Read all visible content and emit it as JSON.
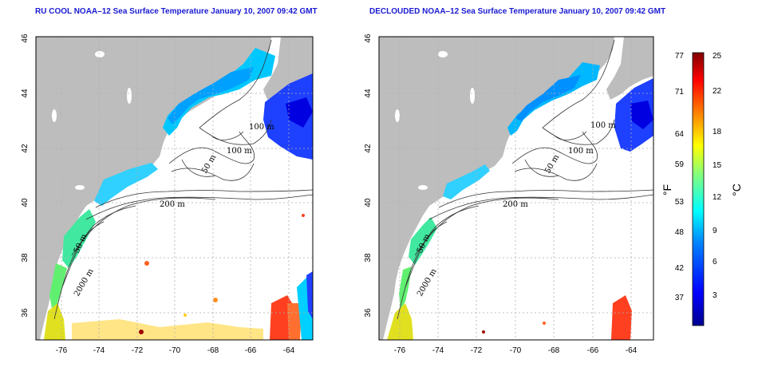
{
  "panels": [
    {
      "title": "RU COOL NOAA–12 Sea Surface Temperature January 10, 2007 09:42 GMT",
      "contour_labels": [
        "100 m",
        "100 m",
        "50 m",
        "200 m",
        "50 m",
        "2000 m"
      ]
    },
    {
      "title": "DECLOUDED NOAA–12 Sea Surface Temperature January 10, 2007 09:42 GMT",
      "contour_labels": [
        "100 m",
        "100 m",
        "50 m",
        "200 m",
        "50 m",
        "2000 m"
      ]
    }
  ],
  "x_ticks": [
    "-76",
    "-74",
    "-72",
    "-70",
    "-68",
    "-66",
    "-64"
  ],
  "y_ticks": [
    "46",
    "44",
    "42",
    "40",
    "38",
    "36"
  ],
  "colorbar": {
    "fahrenheit_ticks": [
      "77",
      "71",
      "64",
      "59",
      "53",
      "48",
      "42",
      "37"
    ],
    "celsius_ticks": [
      "25",
      "22",
      "18",
      "15",
      "12",
      "9",
      "6",
      "3"
    ],
    "fahrenheit_unit": "°F",
    "celsius_unit": "°C",
    "colors": [
      "#00008f",
      "#0000ff",
      "#0080ff",
      "#00ffff",
      "#80ff80",
      "#ffff00",
      "#ff8000",
      "#ff0000",
      "#800000"
    ]
  },
  "colors": {
    "land": "#bdbdbd",
    "title": "#1a1ad2",
    "grid": "#b0b0b0"
  }
}
